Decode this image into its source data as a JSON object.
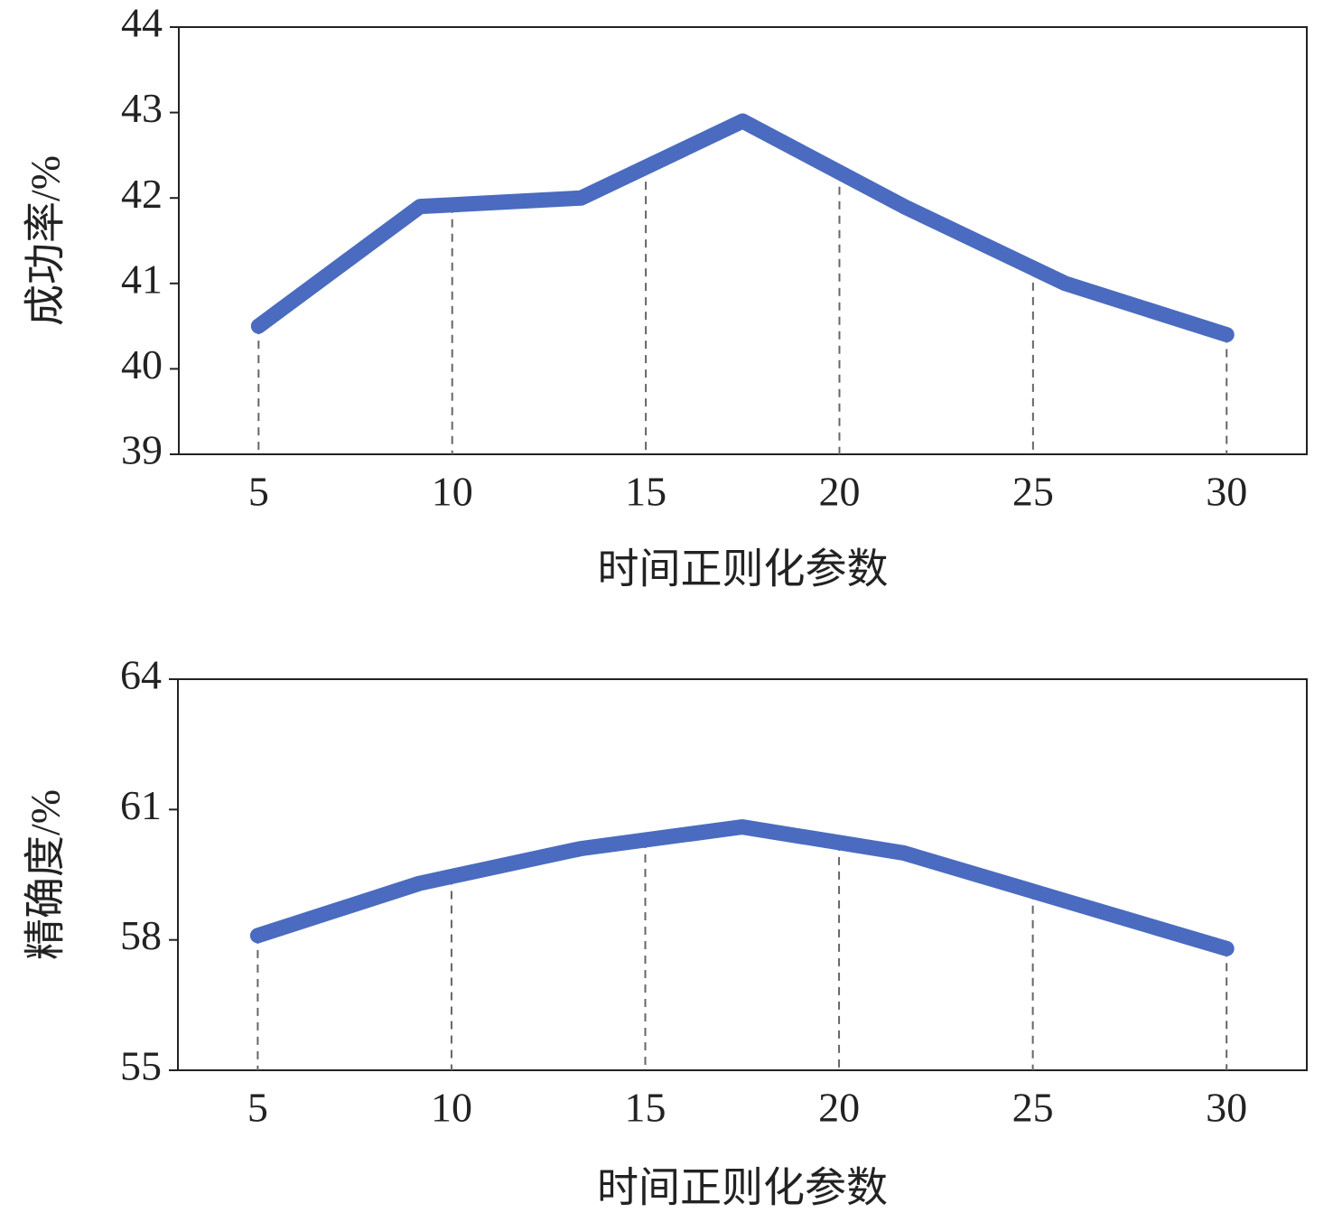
{
  "chart_data": [
    {
      "type": "line",
      "xlabel": "时间正则化参数",
      "ylabel": "成功率/%",
      "x": [
        5,
        9.17,
        13.33,
        17.5,
        21.67,
        25.83,
        30
      ],
      "series": [
        {
          "color": "#4a6bbf",
          "values": [
            40.5,
            41.9,
            42.0,
            42.9,
            41.9,
            41.0,
            40.4
          ]
        }
      ],
      "xlim": [
        2.94,
        32.07
      ],
      "xticks": [
        5,
        10,
        15,
        20,
        25,
        30
      ],
      "ylim": [
        39,
        44
      ],
      "yticks": [
        39,
        40,
        41,
        42,
        43,
        44
      ],
      "grid": "dashed-drop-lines"
    },
    {
      "type": "line",
      "xlabel": "时间正则化参数",
      "ylabel": "精确度/%",
      "x": [
        5,
        9.17,
        13.33,
        17.5,
        21.67,
        25.83,
        30
      ],
      "series": [
        {
          "color": "#4a6bbf",
          "values": [
            58.1,
            59.3,
            60.1,
            60.6,
            60.0,
            58.9,
            57.8
          ]
        }
      ],
      "xlim": [
        2.94,
        32.07
      ],
      "xticks": [
        5,
        10,
        15,
        20,
        25,
        30
      ],
      "ylim": [
        55,
        64
      ],
      "yticks": [
        55,
        58,
        61,
        64
      ],
      "grid": "dashed-drop-lines"
    }
  ]
}
